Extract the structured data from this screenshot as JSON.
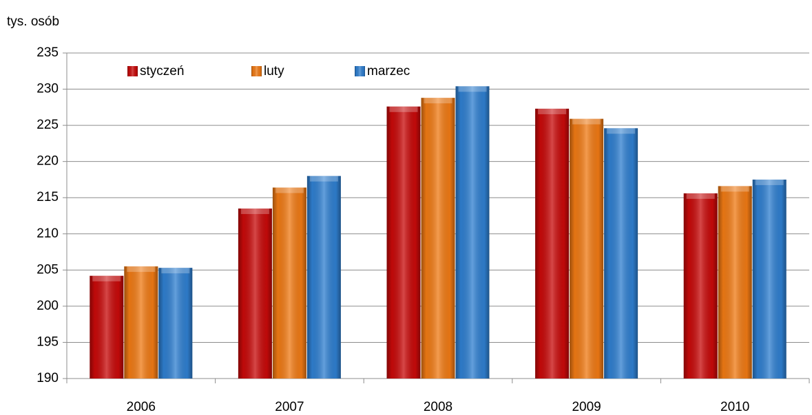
{
  "chart_data": {
    "type": "bar",
    "y_axis_label": "tys. osób",
    "categories": [
      "2006",
      "2007",
      "2008",
      "2009",
      "2010"
    ],
    "series": [
      {
        "name": "styczeń",
        "color": "#c80a0a",
        "values": [
          204.2,
          213.5,
          227.6,
          227.3,
          215.6
        ]
      },
      {
        "name": "luty",
        "color": "#f07a14",
        "values": [
          205.5,
          216.4,
          228.8,
          225.9,
          216.6
        ]
      },
      {
        "name": "marzec",
        "color": "#2f7fd0",
        "values": [
          205.3,
          218.0,
          230.4,
          224.6,
          217.5
        ]
      }
    ],
    "ylim": [
      190,
      235
    ],
    "yticks": [
      190,
      195,
      200,
      205,
      210,
      215,
      220,
      225,
      230,
      235
    ],
    "grid": true,
    "legend": "upper left"
  }
}
